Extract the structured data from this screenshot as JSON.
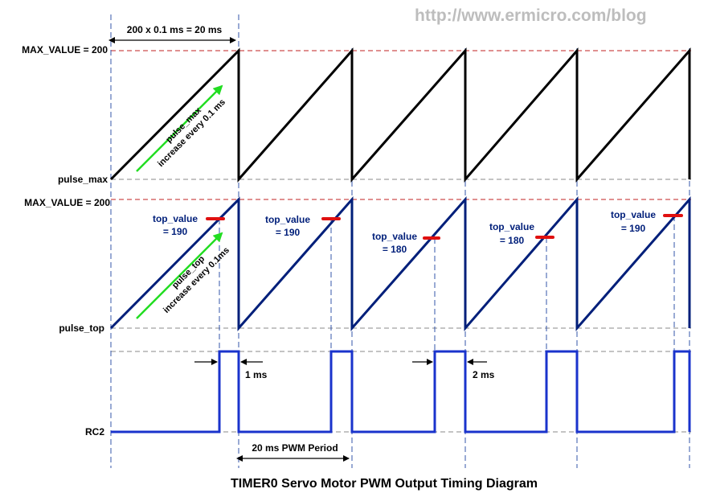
{
  "watermark": "http://www.ermicro.com/blog",
  "caption": "TIMER0 Servo Motor PWM Output Timing Diagram",
  "labels": {
    "max_value_top": "MAX_VALUE = 200",
    "pulse_max": "pulse_max",
    "max_value_mid": "MAX_VALUE = 200",
    "pulse_top": "pulse_top",
    "rc2": "RC2"
  },
  "annotations": {
    "period_calc": "200 x 0.1 ms = 20 ms",
    "pulse_max_arrow_line1": "pulse_max",
    "pulse_max_arrow_line2": "increase every 0.1 ms",
    "pulse_top_arrow_line1": "pulse_top",
    "pulse_top_arrow_line2": "increase every 0.1ms",
    "width_1ms": "1 ms",
    "width_2ms": "2 ms",
    "pwm_period": "20 ms PWM Period"
  },
  "top_values": [
    {
      "line1": "top_value",
      "line2": "= 190"
    },
    {
      "line1": "top_value",
      "line2": "= 190"
    },
    {
      "line1": "top_value",
      "line2": "= 180"
    },
    {
      "line1": "top_value",
      "line2": "= 180"
    },
    {
      "line1": "top_value",
      "line2": "= 190"
    }
  ],
  "colors": {
    "sawtooth_top": "#000000",
    "sawtooth_mid": "#001f7a",
    "pwm_wave": "#1a33cc",
    "green_arrow": "#22dd22",
    "red_marker": "#e01010",
    "red_dashed": "#c02020",
    "grid_dashed": "#888888",
    "blue_dashed": "#3355aa"
  }
}
